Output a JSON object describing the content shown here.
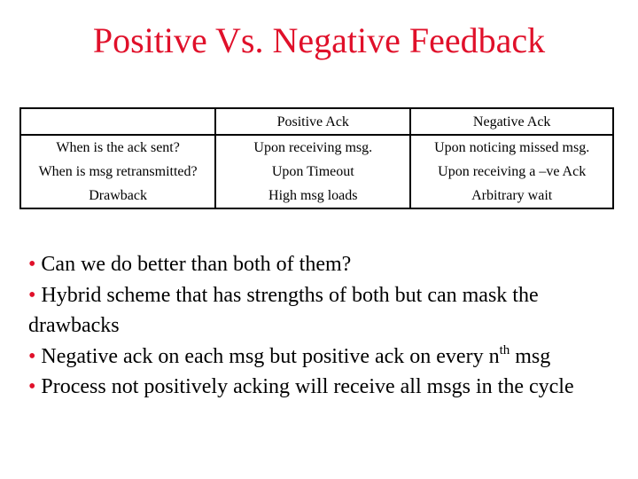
{
  "slide": {
    "title": "Positive Vs. Negative Feedback"
  },
  "table": {
    "header": [
      "",
      "Positive Ack",
      "Negative Ack"
    ],
    "rows": [
      [
        "When is the ack sent?",
        "Upon receiving msg.",
        "Upon noticing missed msg."
      ],
      [
        "When is msg retransmitted?",
        "Upon Timeout",
        "Upon receiving a –ve Ack"
      ],
      [
        "Drawback",
        "High msg loads",
        "Arbitrary wait"
      ]
    ]
  },
  "bullets": {
    "marker": "•",
    "b1": "Can we do better than both of them?",
    "b2": "Hybrid scheme that has strengths of both but can mask the drawbacks",
    "b3_before": "Negative ack on each msg but positive ack on every n",
    "b3_sup": "th",
    "b3_after": " msg",
    "b4": "Process not positively acking will receive all msgs in the cycle"
  },
  "colors": {
    "title": "#e0102a",
    "bullet_marker": "#e0102a",
    "text": "#000000",
    "background": "#ffffff"
  }
}
